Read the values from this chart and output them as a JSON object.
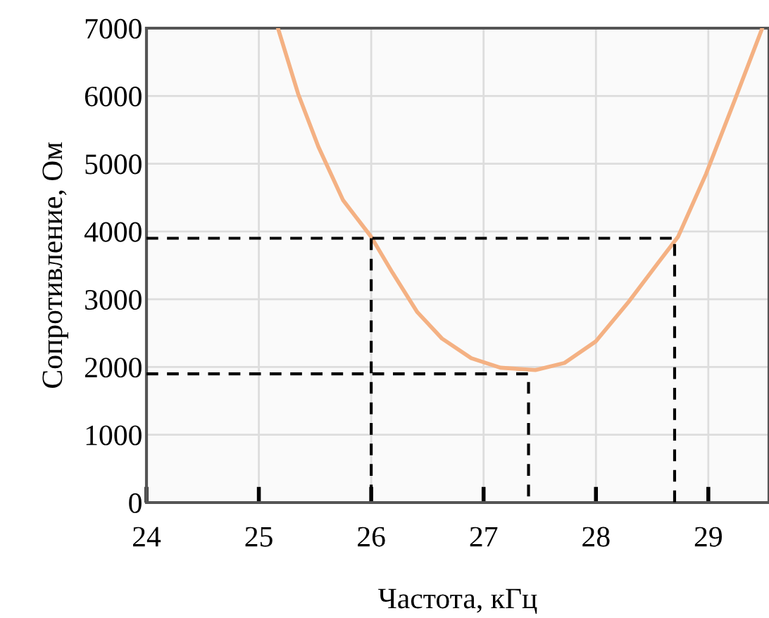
{
  "chart_data": {
    "type": "line",
    "xlabel": "Частота, кГц",
    "ylabel": "Сопротивление, Ом",
    "xlim": [
      24,
      29.54
    ],
    "ylim": [
      0,
      7000
    ],
    "xticks": [
      24,
      25,
      26,
      27,
      28,
      29
    ],
    "yticks": [
      0,
      1000,
      2000,
      3000,
      4000,
      5000,
      6000,
      7000
    ],
    "grid": true,
    "legend": false,
    "series": [
      {
        "color": "#f4b183",
        "line_style": "solid",
        "x": [
          25.17,
          25.35,
          25.53,
          25.75,
          26.0,
          26.19,
          26.41,
          26.63,
          26.89,
          27.15,
          27.46,
          27.72,
          28.0,
          28.29,
          28.55,
          28.73,
          28.98,
          29.24,
          29.48
        ],
        "values": [
          7000,
          6030,
          5250,
          4460,
          3920,
          3390,
          2810,
          2420,
          2130,
          1990,
          1955,
          2060,
          2380,
          2960,
          3530,
          3920,
          4850,
          5960,
          7000
        ]
      },
      {
        "color": "#000000",
        "line_style": "dashed",
        "x": [
          24,
          28.7,
          28.7
        ],
        "values": [
          3900,
          3900,
          0
        ]
      },
      {
        "color": "#000000",
        "line_style": "dashed",
        "x": [
          26.0,
          26.0
        ],
        "values": [
          3900,
          0
        ]
      },
      {
        "color": "#000000",
        "line_style": "dashed",
        "x": [
          24,
          27.4,
          27.4
        ],
        "values": [
          1900,
          1900,
          0
        ]
      }
    ]
  }
}
